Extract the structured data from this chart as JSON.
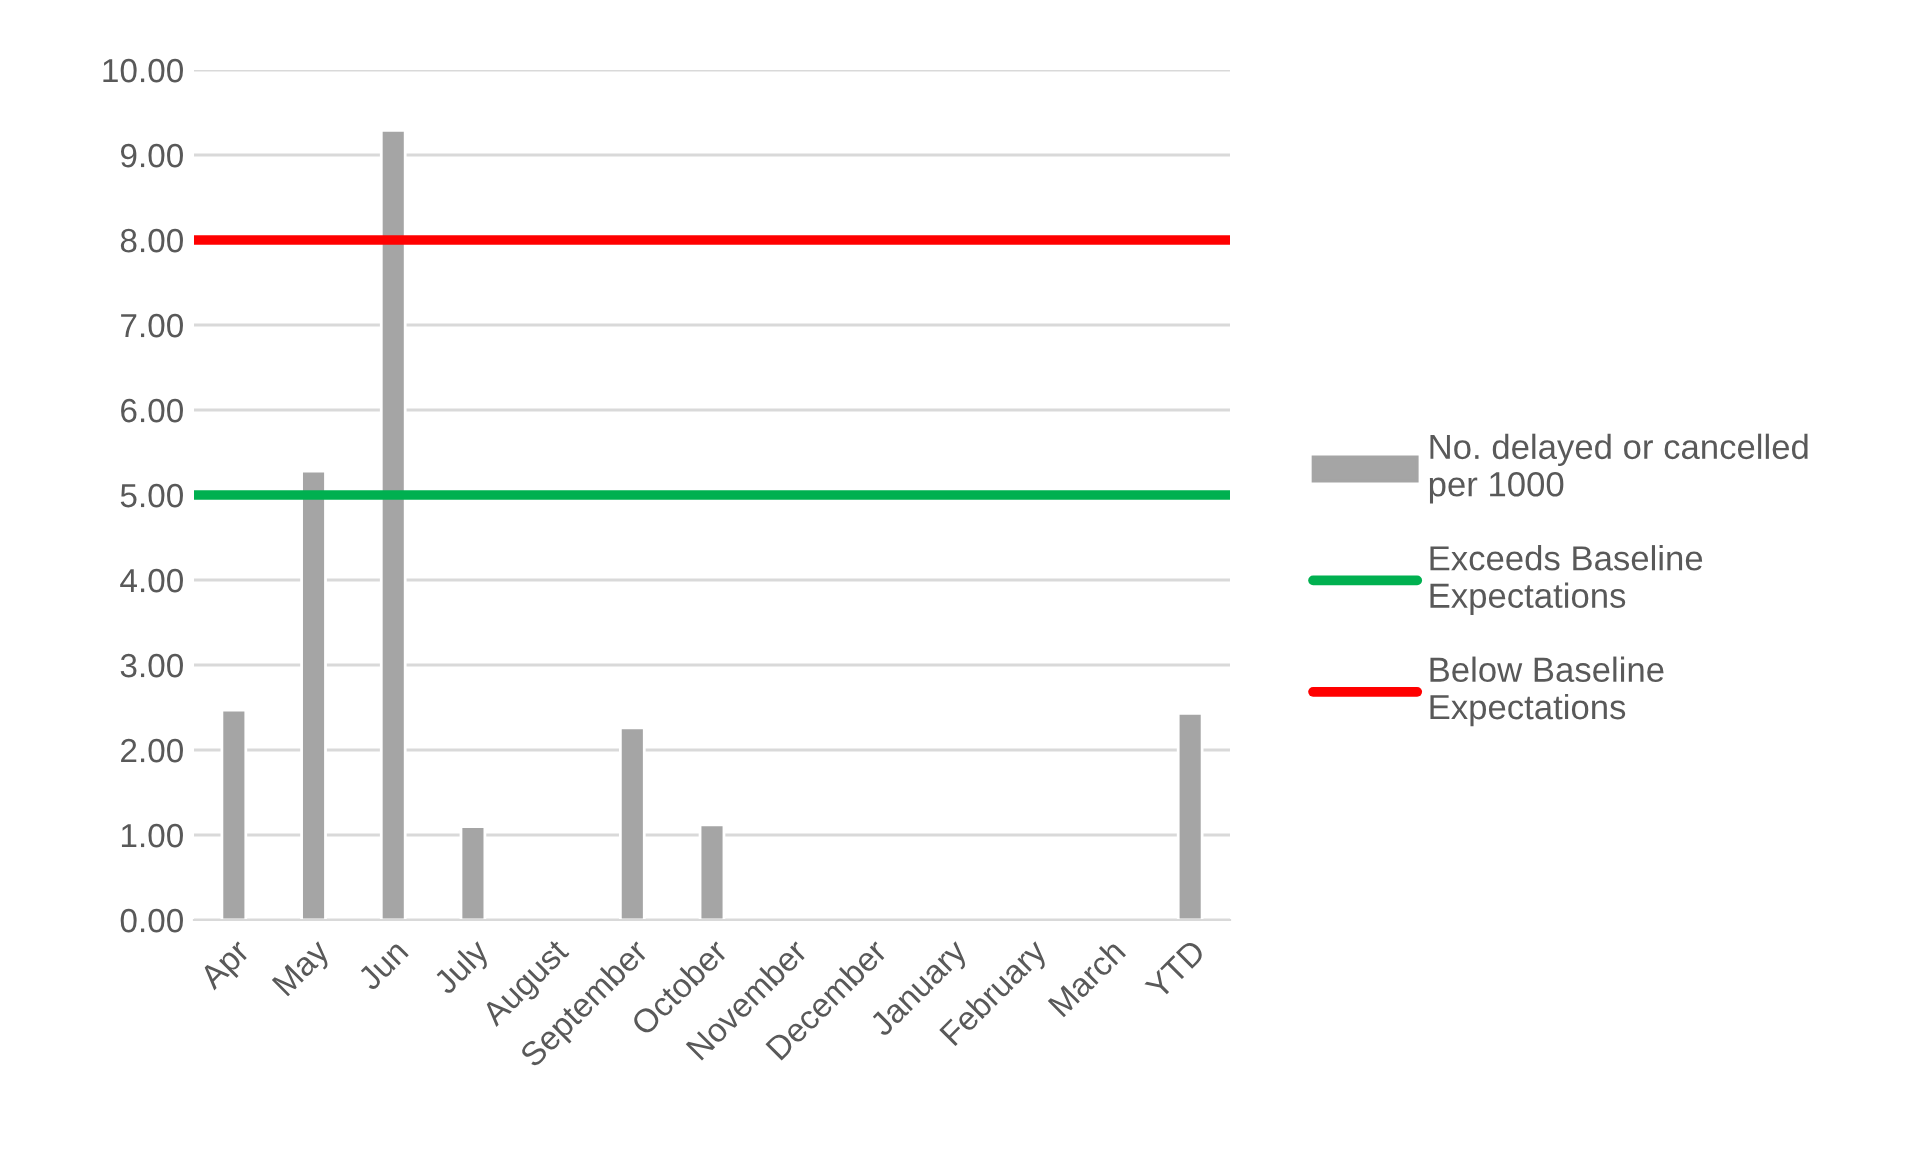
{
  "chart_data": {
    "type": "bar",
    "categories": [
      "Apr",
      "May",
      "Jun",
      "July",
      "August",
      "September",
      "October",
      "November",
      "December",
      "January",
      "February",
      "March",
      "YTD"
    ],
    "series": [
      {
        "name": "No. delayed or cancelled per 1000",
        "color": "#a5a5a5",
        "values": [
          2.47,
          5.28,
          9.29,
          1.1,
          null,
          2.26,
          1.12,
          null,
          null,
          null,
          null,
          null,
          2.43
        ]
      }
    ],
    "ref_lines": [
      {
        "axis": "y",
        "value": 5,
        "label": "Exceeds Baseline Expectations",
        "color": "#00b050"
      },
      {
        "axis": "y",
        "value": 8,
        "label": "Below Baseline Expectations",
        "color": "#ff0000"
      }
    ],
    "ylim": [
      0,
      10
    ],
    "yticks": [
      {
        "value": 0,
        "label": "0.00"
      },
      {
        "value": 1,
        "label": "1.00"
      },
      {
        "value": 2,
        "label": "2.00"
      },
      {
        "value": 3,
        "label": "3.00"
      },
      {
        "value": 4,
        "label": "4.00"
      },
      {
        "value": 5,
        "label": "5.00"
      },
      {
        "value": 6,
        "label": "6.00"
      },
      {
        "value": 7,
        "label": "7.00"
      },
      {
        "value": 8,
        "label": "8.00"
      },
      {
        "value": 9,
        "label": "9.00"
      },
      {
        "value": 10,
        "label": "10.00"
      }
    ],
    "grid": "y",
    "legend": "right"
  }
}
